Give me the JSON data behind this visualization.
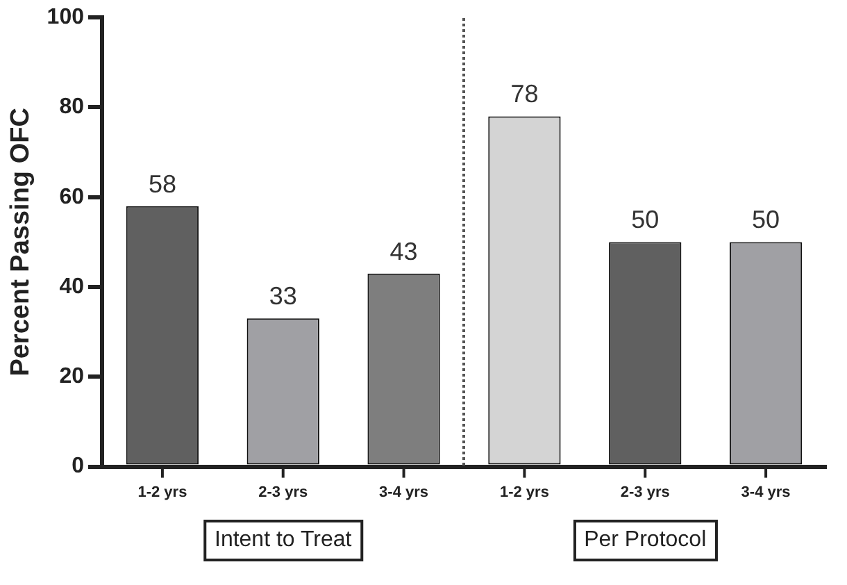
{
  "chart_data": {
    "type": "bar",
    "ylabel": "Percent Passing OFC",
    "categories": [
      "1-2 yrs",
      "2-3 yrs",
      "3-4 yrs",
      "1-2 yrs",
      "2-3 yrs",
      "3-4 yrs"
    ],
    "values": [
      58,
      33,
      43,
      78,
      50,
      50
    ],
    "colors": [
      "#606060",
      "#a0a0a4",
      "#7e7e7e",
      "#d4d4d4",
      "#606060",
      "#a0a0a4"
    ],
    "ylim": [
      0,
      100
    ],
    "yticks": [
      0,
      20,
      40,
      60,
      80,
      100
    ],
    "data_labels": true,
    "grid": false,
    "legend": false,
    "annotations": [
      "Intent to Treat",
      "Per Protocol"
    ]
  }
}
